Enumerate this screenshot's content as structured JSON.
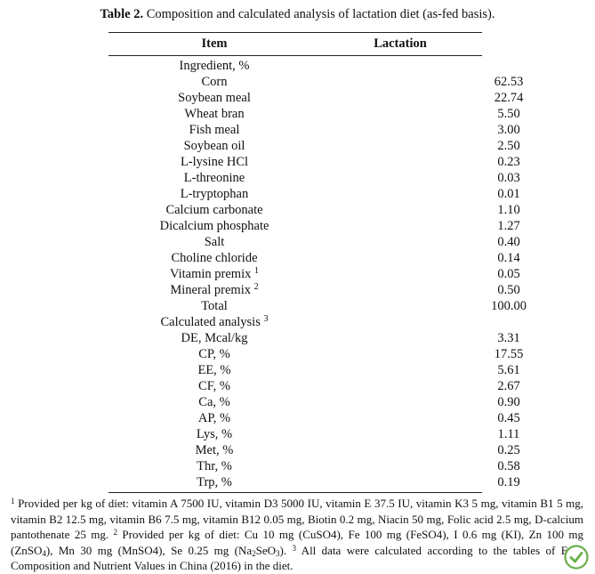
{
  "caption": {
    "label": "Table 2.",
    "text": "Composition and calculated analysis of lactation diet (as-fed basis)."
  },
  "header": {
    "item": "Item",
    "lactation": "Lactation"
  },
  "rows": [
    {
      "name": "Ingredient, %",
      "sup": "",
      "value": ""
    },
    {
      "name": "Corn",
      "sup": "",
      "value": "62.53"
    },
    {
      "name": "Soybean meal",
      "sup": "",
      "value": "22.74"
    },
    {
      "name": "Wheat bran",
      "sup": "",
      "value": "5.50"
    },
    {
      "name": "Fish meal",
      "sup": "",
      "value": "3.00"
    },
    {
      "name": "Soybean oil",
      "sup": "",
      "value": "2.50"
    },
    {
      "name": "L-lysine HCl",
      "sup": "",
      "value": "0.23"
    },
    {
      "name": "L-threonine",
      "sup": "",
      "value": "0.03"
    },
    {
      "name": "L-tryptophan",
      "sup": "",
      "value": "0.01"
    },
    {
      "name": "Calcium carbonate",
      "sup": "",
      "value": "1.10"
    },
    {
      "name": "Dicalcium phosphate",
      "sup": "",
      "value": "1.27"
    },
    {
      "name": "Salt",
      "sup": "",
      "value": "0.40"
    },
    {
      "name": "Choline chloride",
      "sup": "",
      "value": "0.14"
    },
    {
      "name": "Vitamin premix",
      "sup": "1",
      "value": "0.05"
    },
    {
      "name": "Mineral premix",
      "sup": "2",
      "value": "0.50"
    },
    {
      "name": "Total",
      "sup": "",
      "value": "100.00"
    },
    {
      "name": "Calculated analysis",
      "sup": "3",
      "value": ""
    },
    {
      "name": "DE, Mcal/kg",
      "sup": "",
      "value": "3.31"
    },
    {
      "name": "CP, %",
      "sup": "",
      "value": "17.55"
    },
    {
      "name": "EE, %",
      "sup": "",
      "value": "5.61"
    },
    {
      "name": "CF, %",
      "sup": "",
      "value": "2.67"
    },
    {
      "name": "Ca, %",
      "sup": "",
      "value": "0.90"
    },
    {
      "name": "AP, %",
      "sup": "",
      "value": "0.45"
    },
    {
      "name": "Lys, %",
      "sup": "",
      "value": "1.11"
    },
    {
      "name": "Met, %",
      "sup": "",
      "value": "0.25"
    },
    {
      "name": "Thr, %",
      "sup": "",
      "value": "0.58"
    },
    {
      "name": "Trp, %",
      "sup": "",
      "value": "0.19"
    }
  ],
  "footnotes": {
    "n1": "1",
    "t1": " Provided per kg of diet: vitamin A 7500 IU, vitamin D3 5000 IU, vitamin E 37.5 IU, vitamin K3 5 mg, vitamin B1 5 mg, vitamin B2 12.5 mg, vitamin B6 7.5 mg, vitamin B12 0.05 mg, Biotin 0.2 mg, Niacin 50 mg, Folic acid 2.5 mg, D-calcium pantothenate 25 mg. ",
    "n2": "2",
    "t2a": " Provided per kg of diet: Cu 10 mg (CuSO4), Fe 100 mg (FeSO4), I 0.6 mg (KI), Zn 100 mg (ZnSO",
    "s2a": "4",
    "t2b": "), Mn 30 mg (MnSO4), Se 0.25 mg (Na",
    "s2b": "2",
    "t2c": "SeO",
    "s2c": "3",
    "t2d": "). ",
    "n3": "3",
    "t3": " All data were calculated according to the tables of Feed Composition and Nutrient Values in China (2016) in the diet."
  },
  "logo_icon": "check-badge-icon",
  "logo_color": "#6ab04c"
}
